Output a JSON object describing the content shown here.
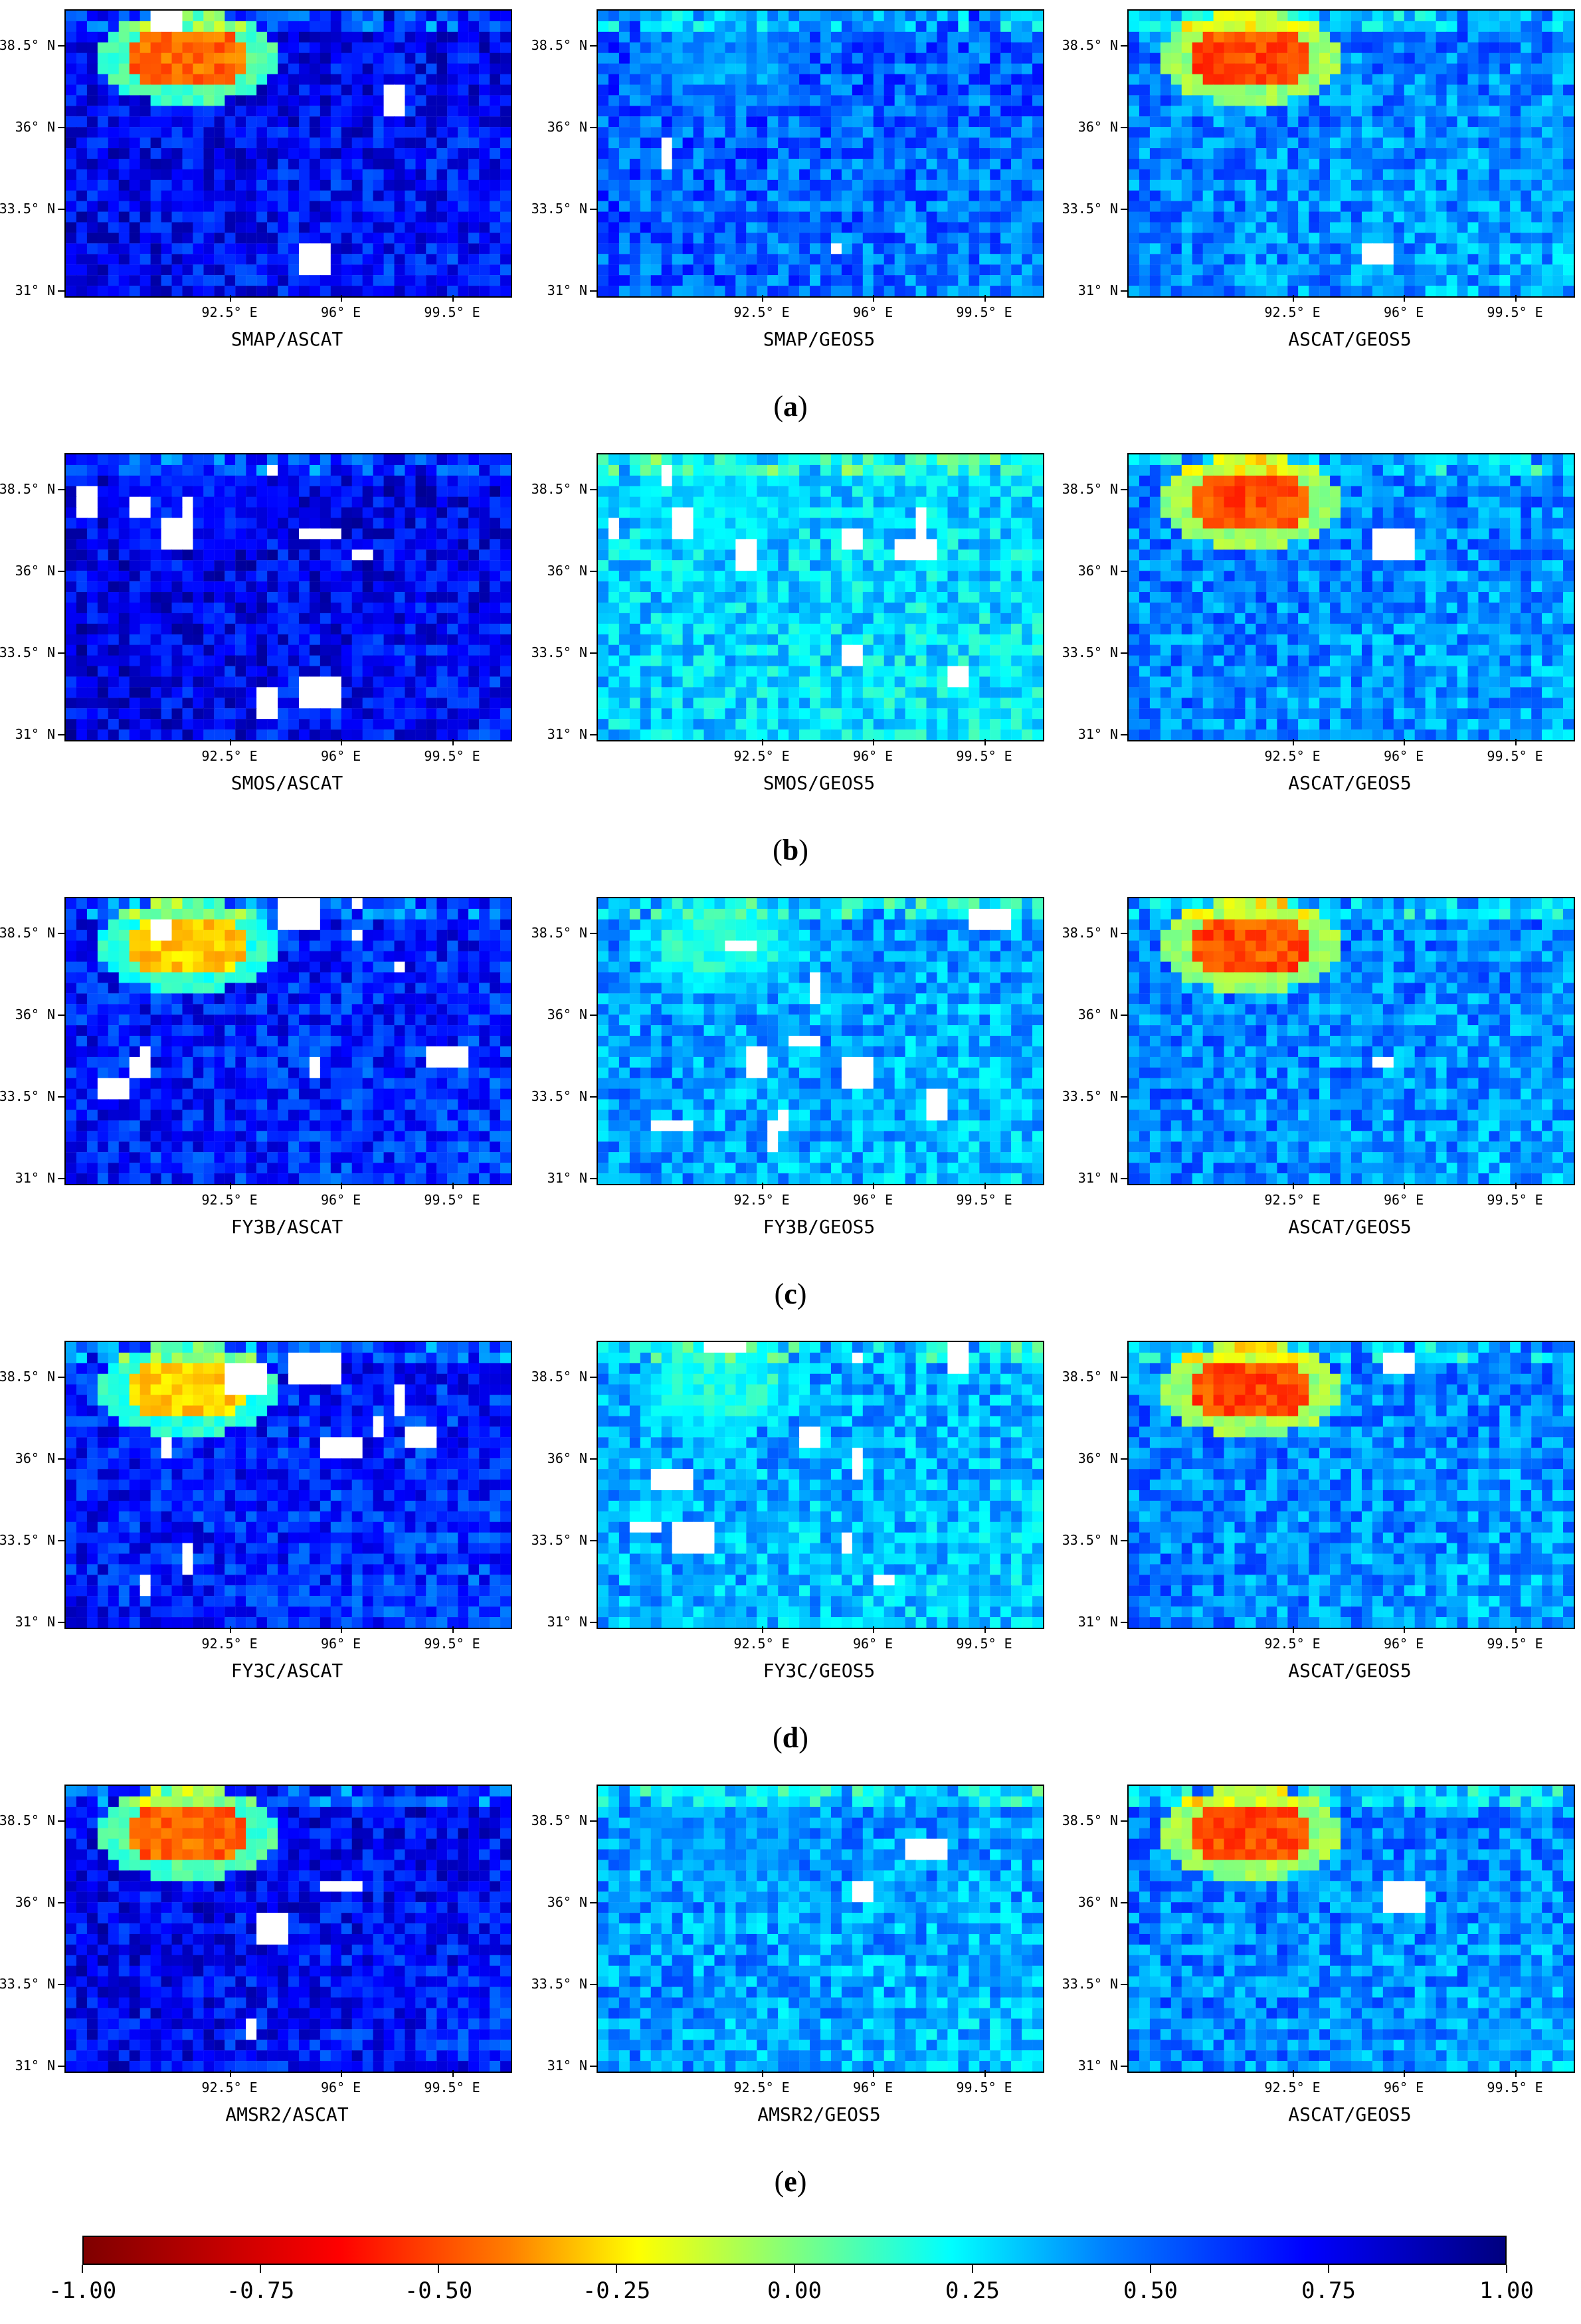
{
  "chart_data": {
    "type": "heatmap",
    "layout": "5 rows x 3 columns of gridded maps sharing one colorbar",
    "y_ticks": [
      "38.5° N",
      "36° N",
      "33.5° N",
      "31° N"
    ],
    "x_ticks": [
      "92.5° E",
      "96° E",
      "99.5° E"
    ],
    "lat_range": [
      31,
      39.75
    ],
    "lon_range": [
      88.5,
      102.5
    ],
    "colormap": "jet_r",
    "value_range": [
      -1.0,
      1.0
    ],
    "colorbar": {
      "ticks": [
        "-1.00",
        "-0.75",
        "-0.50",
        "-0.25",
        "0.00",
        "0.25",
        "0.50",
        "0.75",
        "1.00"
      ],
      "orientation": "horizontal",
      "placement": "bottom"
    },
    "rows": [
      {
        "label": "a",
        "panels": [
          {
            "title": "SMAP/ASCAT",
            "base": 0.78,
            "hot_region_value": -0.55,
            "white_gaps": 3
          },
          {
            "title": "SMAP/GEOS5",
            "base": 0.58,
            "hot_region_value": 0.45,
            "white_gaps": 2
          },
          {
            "title": "ASCAT/GEOS5",
            "base": 0.5,
            "hot_region_value": -0.6,
            "white_gaps": 1
          }
        ]
      },
      {
        "label": "b",
        "panels": [
          {
            "title": "SMOS/ASCAT",
            "base": 0.8,
            "hot_region_value": 0.7,
            "white_gaps": 9
          },
          {
            "title": "SMOS/GEOS5",
            "base": 0.35,
            "hot_region_value": 0.3,
            "white_gaps": 9
          },
          {
            "title": "ASCAT/GEOS5",
            "base": 0.5,
            "hot_region_value": -0.6,
            "white_gaps": 1
          }
        ]
      },
      {
        "label": "c",
        "panels": [
          {
            "title": "FY3B/ASCAT",
            "base": 0.72,
            "hot_region_value": -0.35,
            "white_gaps": 10
          },
          {
            "title": "FY3B/GEOS5",
            "base": 0.45,
            "hot_region_value": 0.2,
            "white_gaps": 10
          },
          {
            "title": "ASCAT/GEOS5",
            "base": 0.5,
            "hot_region_value": -0.6,
            "white_gaps": 1
          }
        ]
      },
      {
        "label": "d",
        "panels": [
          {
            "title": "FY3C/ASCAT",
            "base": 0.72,
            "hot_region_value": -0.35,
            "white_gaps": 10
          },
          {
            "title": "FY3C/GEOS5",
            "base": 0.42,
            "hot_region_value": 0.2,
            "white_gaps": 10
          },
          {
            "title": "ASCAT/GEOS5",
            "base": 0.5,
            "hot_region_value": -0.6,
            "white_gaps": 1
          }
        ]
      },
      {
        "label": "e",
        "panels": [
          {
            "title": "AMSR2/ASCAT",
            "base": 0.78,
            "hot_region_value": -0.55,
            "white_gaps": 3
          },
          {
            "title": "AMSR2/GEOS5",
            "base": 0.45,
            "hot_region_value": 0.45,
            "white_gaps": 2
          },
          {
            "title": "ASCAT/GEOS5",
            "base": 0.5,
            "hot_region_value": -0.6,
            "white_gaps": 1
          }
        ]
      }
    ]
  }
}
